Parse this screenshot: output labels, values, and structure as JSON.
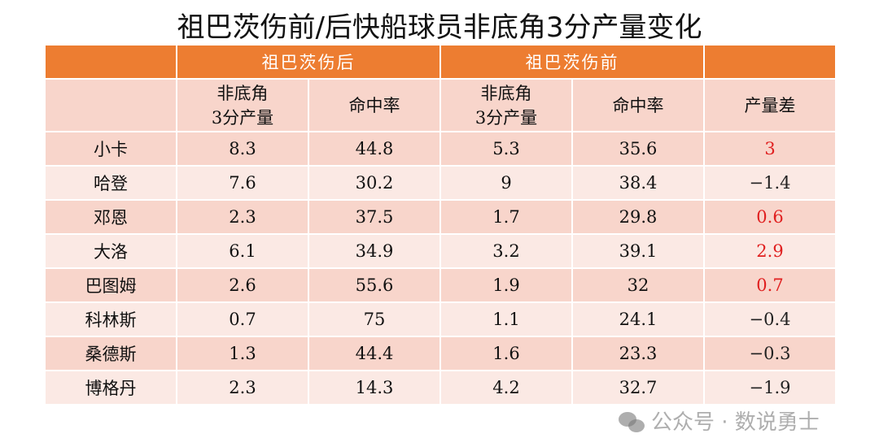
{
  "title": "祖巴茨伤前/后快船球员非底角3分产量变化",
  "header": {
    "group_after": "祖巴茨伤后",
    "group_before": "祖巴茨伤前",
    "col_volume": [
      "非底角",
      "3分产量"
    ],
    "col_pct": "命中率",
    "col_diff": "产量差"
  },
  "rows": [
    {
      "name": "小卡",
      "after_vol": "8.3",
      "after_pct": "44.8",
      "before_vol": "5.3",
      "before_pct": "35.6",
      "diff": "3",
      "positive": true
    },
    {
      "name": "哈登",
      "after_vol": "7.6",
      "after_pct": "30.2",
      "before_vol": "9",
      "before_pct": "38.4",
      "diff": "−1.4",
      "positive": false
    },
    {
      "name": "邓恩",
      "after_vol": "2.3",
      "after_pct": "37.5",
      "before_vol": "1.7",
      "before_pct": "29.8",
      "diff": "0.6",
      "positive": true
    },
    {
      "name": "大洛",
      "after_vol": "6.1",
      "after_pct": "34.9",
      "before_vol": "3.2",
      "before_pct": "39.1",
      "diff": "2.9",
      "positive": true
    },
    {
      "name": "巴图姆",
      "after_vol": "2.6",
      "after_pct": "55.6",
      "before_vol": "1.9",
      "before_pct": "32",
      "diff": "0.7",
      "positive": true
    },
    {
      "name": "科林斯",
      "after_vol": "0.7",
      "after_pct": "75",
      "before_vol": "1.1",
      "before_pct": "24.1",
      "diff": "−0.4",
      "positive": false
    },
    {
      "name": "桑德斯",
      "after_vol": "1.3",
      "after_pct": "44.4",
      "before_vol": "1.6",
      "before_pct": "23.3",
      "diff": "−0.3",
      "positive": false
    },
    {
      "name": "博格丹",
      "after_vol": "2.3",
      "after_pct": "14.3",
      "before_vol": "4.2",
      "before_pct": "32.7",
      "diff": "−1.9",
      "positive": false
    }
  ],
  "colors": {
    "header": "#ed7d31",
    "row_dark": "#f8d5cb",
    "row_light": "#fbe9e4",
    "positive": "#e02020"
  },
  "watermark": "公众号 · 数说勇士"
}
